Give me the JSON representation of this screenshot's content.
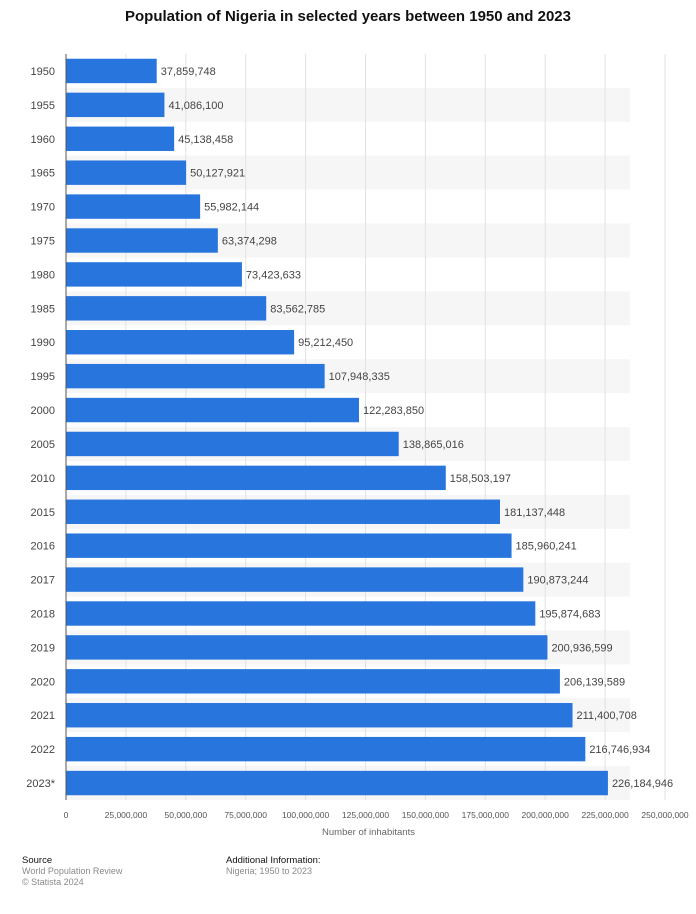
{
  "chart_data": {
    "type": "bar",
    "orientation": "horizontal",
    "title": "Population of Nigeria in selected years between 1950 and 2023",
    "xlabel": "Number of inhabitants",
    "ylabel": "",
    "xlim": [
      0,
      250000000
    ],
    "grid": true,
    "categories": [
      "1950",
      "1955",
      "1960",
      "1965",
      "1970",
      "1975",
      "1980",
      "1985",
      "1990",
      "1995",
      "2000",
      "2005",
      "2010",
      "2015",
      "2016",
      "2017",
      "2018",
      "2019",
      "2020",
      "2021",
      "2022",
      "2023*"
    ],
    "values": [
      37859748,
      41086100,
      45138458,
      50127921,
      55982144,
      63374298,
      73423633,
      83562785,
      95212450,
      107948335,
      122283850,
      138865016,
      158503197,
      181137448,
      185960241,
      190873244,
      195874683,
      200936599,
      206139589,
      211400708,
      216746934,
      226184946
    ],
    "value_labels": [
      "37,859,748",
      "41,086,100",
      "45,138,458",
      "50,127,921",
      "55,982,144",
      "63,374,298",
      "73,423,633",
      "83,562,785",
      "95,212,450",
      "107,948,335",
      "122,283,850",
      "138,865,016",
      "158,503,197",
      "181,137,448",
      "185,960,241",
      "190,873,244",
      "195,874,683",
      "200,936,599",
      "206,139,589",
      "211,400,708",
      "216,746,934",
      "226,184,946"
    ],
    "x_ticks": [
      0,
      25000000,
      50000000,
      75000000,
      100000000,
      125000000,
      150000000,
      175000000,
      200000000,
      225000000,
      250000000
    ],
    "x_tick_labels": [
      "0",
      "25,000,000",
      "50,000,000",
      "75,000,000",
      "100,000,000",
      "125,000,000",
      "150,000,000",
      "175,000,000",
      "200,000,000",
      "225,000,000",
      "250,000,000"
    ],
    "bar_color": "#2876dd"
  },
  "footer": {
    "source_heading": "Source",
    "source_text": "World Population Review",
    "copyright": "© Statista 2024",
    "info_heading": "Additional Information:",
    "info_text": "Nigeria; 1950 to 2023"
  }
}
